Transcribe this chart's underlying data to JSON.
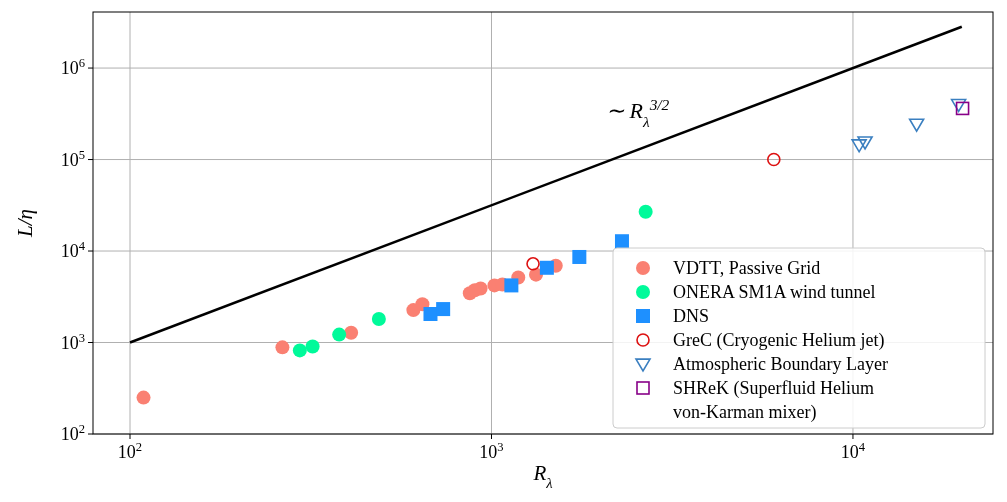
{
  "chart_data": {
    "type": "scatter",
    "xlabel": "R$_{λ}$",
    "ylabel": "L/η",
    "log": "xy",
    "grid": true,
    "legend": "bottom right",
    "xlim": [
      79,
      24400
    ],
    "ylim": [
      100,
      4100000
    ],
    "xticks": [
      {
        "value": 100,
        "label": "10$^{2}$"
      },
      {
        "value": 1000,
        "label": "10$^{3}$"
      },
      {
        "value": 10000,
        "label": "10$^{4}$"
      }
    ],
    "yticks": [
      {
        "value": 100,
        "label": "10$^{2}$"
      },
      {
        "value": 1000,
        "label": "10$^{3}$"
      },
      {
        "value": 10000,
        "label": "10$^{4}$"
      },
      {
        "value": 100000,
        "label": "10$^{5}$"
      },
      {
        "value": 1000000,
        "label": "10$^{6}$"
      }
    ],
    "annotations": [
      "∼ R$_{λ}$$^{3/2}$"
    ],
    "series": [
      {
        "type": "line",
        "color": "#000000",
        "x": [
          100,
          20000
        ],
        "values": [
          1000,
          2828427
        ]
      },
      {
        "name": "VDTT, Passive Grid",
        "color": "#fa8072",
        "marker": "circle",
        "x": [
          109,
          264,
          409,
          608,
          644,
          871,
          899,
          933,
          1019,
          1072,
          1186,
          1328,
          1506
        ],
        "values": [
          250,
          885,
          1280,
          2260,
          2620,
          3450,
          3720,
          3900,
          4210,
          4300,
          5130,
          5520,
          6900
        ]
      },
      {
        "name": "ONERA SM1A wind tunnel",
        "color": "#00fa9a",
        "marker": "circle",
        "x": [
          295,
          320,
          379,
          488,
          2670
        ],
        "values": [
          820,
          906,
          1220,
          1810,
          26900
        ]
      },
      {
        "name": "DNS",
        "color": "#1e90ff",
        "marker": "square",
        "x": [
          678,
          735,
          1135,
          1423,
          1750,
          2296
        ],
        "values": [
          2050,
          2320,
          4210,
          6560,
          8610,
          12800
        ]
      },
      {
        "name": "GreC (Cryogenic Helium jet)",
        "color": "#dd1111",
        "marker": "circle-open",
        "x": [
          1303,
          6040
        ],
        "values": [
          7250,
          100000
        ]
      },
      {
        "name": "Atmospheric Boundary Layer",
        "color": "#3a7fc0",
        "marker": "triangle-down-open",
        "x": [
          10400,
          10800,
          15000,
          19600
        ],
        "values": [
          145000,
          156000,
          244000,
          400000
        ]
      },
      {
        "name": "SHReK (Superfluid Helium\nvon-Karman mixer)",
        "color": "#880088",
        "marker": "square-open",
        "x": [
          20100
        ],
        "values": [
          362000
        ]
      }
    ]
  }
}
